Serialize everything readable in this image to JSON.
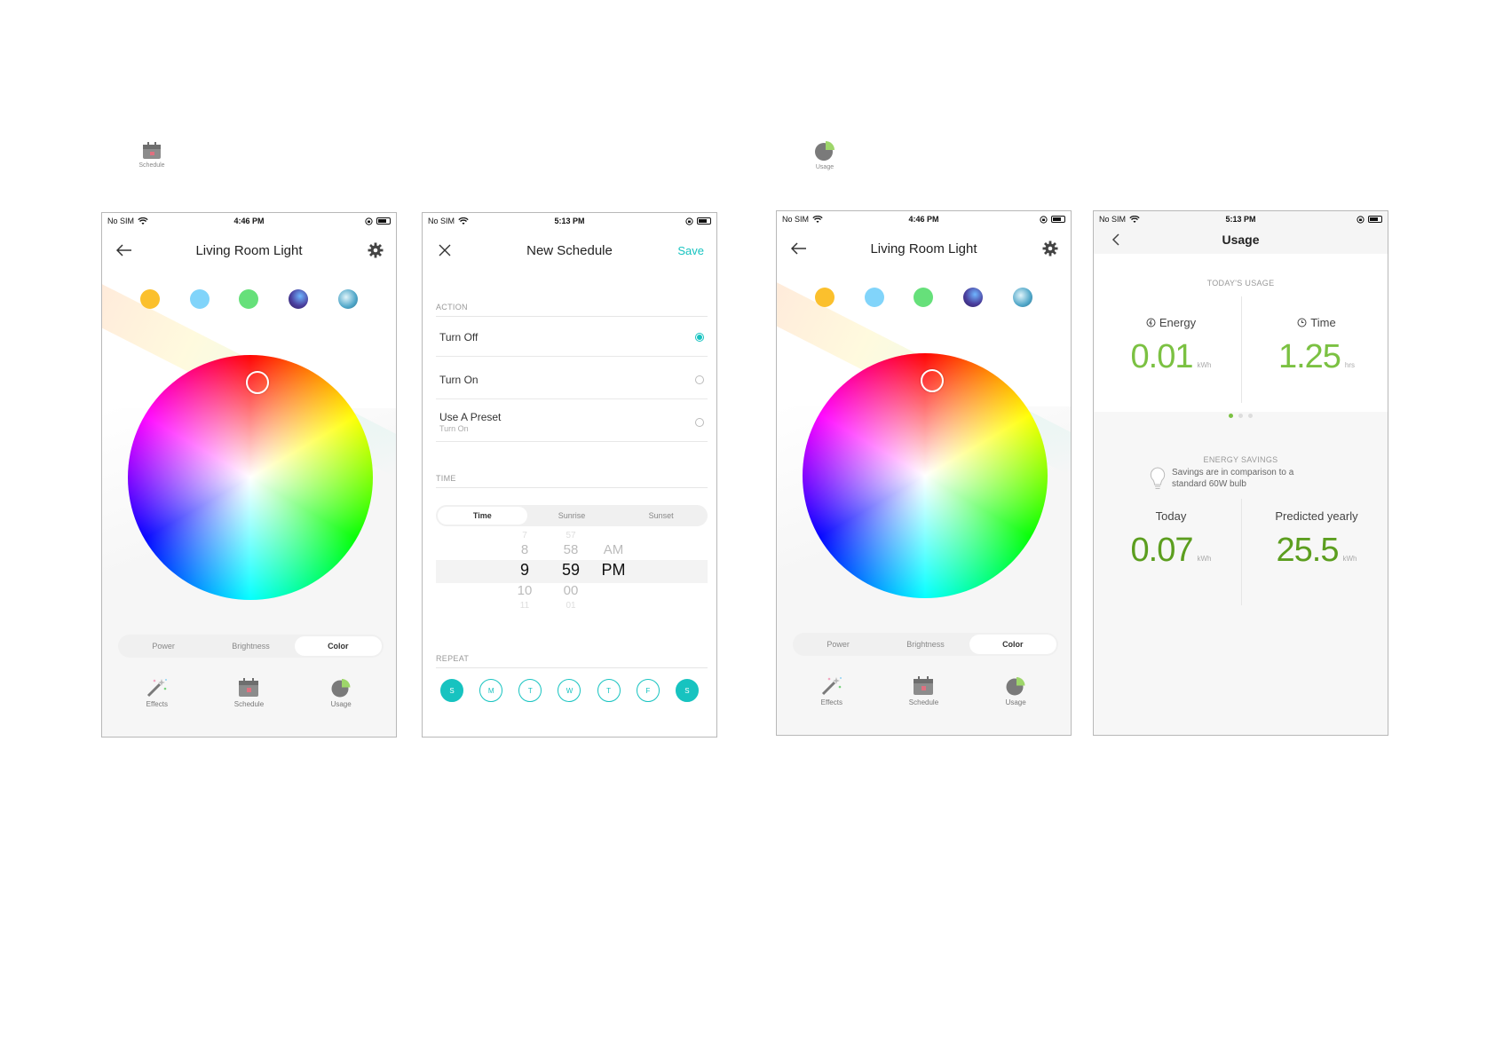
{
  "floating": {
    "schedule_label": "Schedule",
    "usage_label": "Usage"
  },
  "color_screen": {
    "status": {
      "carrier": "No SIM",
      "time": "4:46 PM"
    },
    "title": "Living Room Light",
    "presets": [
      "#fbc02d",
      "#81d4fa",
      "#66e07a",
      "#4a3f9e",
      "#4fa6c8"
    ],
    "segments": [
      "Power",
      "Brightness",
      "Color"
    ],
    "active_segment": "Color",
    "tabs": [
      "Effects",
      "Schedule",
      "Usage"
    ]
  },
  "schedule_screen": {
    "status": {
      "carrier": "No SIM",
      "time": "5:13 PM"
    },
    "title": "New Schedule",
    "save_label": "Save",
    "action_header": "ACTION",
    "actions": [
      {
        "label": "Turn Off",
        "selected": true
      },
      {
        "label": "Turn On",
        "selected": false
      },
      {
        "label": "Use A Preset",
        "sub": "Turn On",
        "selected": false
      }
    ],
    "time_header": "TIME",
    "time_segments": [
      "Time",
      "Sunrise",
      "Sunset"
    ],
    "active_time_segment": "Time",
    "picker": {
      "hours": [
        "7",
        "8",
        "9",
        "10",
        "11"
      ],
      "minutes": [
        "57",
        "58",
        "59",
        "00",
        "01"
      ],
      "ampm": [
        "AM",
        "PM"
      ]
    },
    "repeat_header": "REPEAT",
    "days": [
      {
        "label": "S",
        "on": true
      },
      {
        "label": "M",
        "on": false
      },
      {
        "label": "T",
        "on": false
      },
      {
        "label": "W",
        "on": false
      },
      {
        "label": "T",
        "on": false
      },
      {
        "label": "F",
        "on": false
      },
      {
        "label": "S",
        "on": true
      }
    ]
  },
  "usage_screen": {
    "status": {
      "carrier": "No SIM",
      "time": "5:13 PM"
    },
    "title": "Usage",
    "todays_usage_label": "TODAY'S USAGE",
    "energy": {
      "label": "Energy",
      "value": "0.01",
      "unit": "kWh"
    },
    "time": {
      "label": "Time",
      "value": "1.25",
      "unit": "hrs"
    },
    "savings_header": "ENERGY SAVINGS",
    "savings_text": "Savings are in comparison to a standard 60W bulb",
    "today": {
      "label": "Today",
      "value": "0.07",
      "unit": "kWh"
    },
    "yearly": {
      "label": "Predicted yearly",
      "value": "25.5",
      "unit": "kWh"
    }
  },
  "colors": {
    "accent_teal": "#17c3c0",
    "usage_green": "#7bc142"
  }
}
